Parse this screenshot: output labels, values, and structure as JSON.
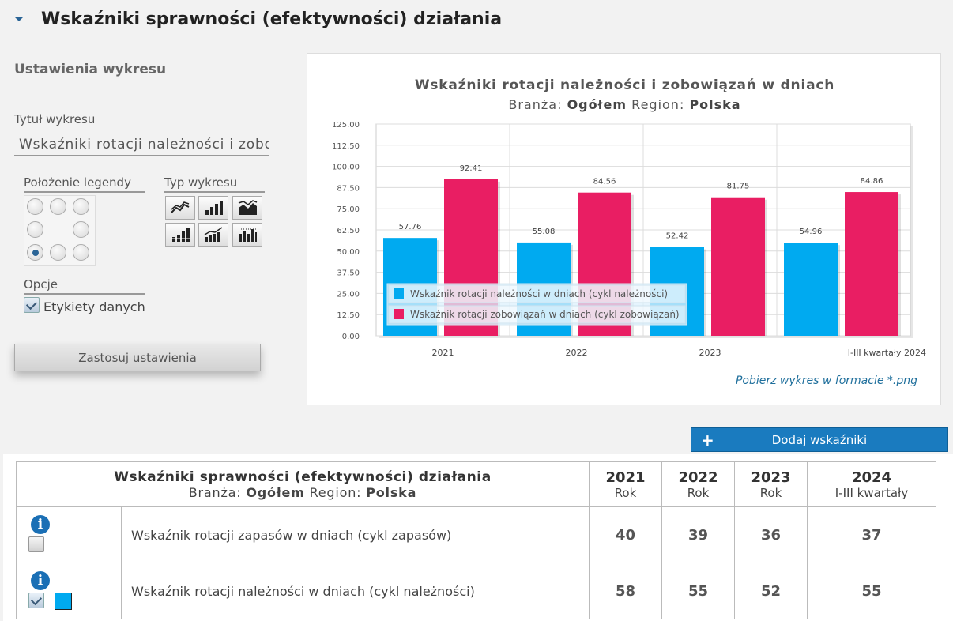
{
  "header": {
    "title": "Wskaźniki sprawności (efektywności) działania"
  },
  "settings": {
    "title": "Ustawienia wykresu",
    "chart_title_label": "Tytuł wykresu",
    "chart_title_value": "Wskaźniki rotacji należności i zobowiązań w dniach",
    "legend_position_label": "Położenie legendy",
    "legend_position_selected": "bottom-left",
    "chart_type_label": "Typ wykresu",
    "chart_types": [
      "line-chart-icon",
      "bar-chart-icon",
      "area-chart-icon",
      "stacked-bar-chart-icon",
      "line-bar-chart-icon",
      "dotted-bar-chart-icon"
    ],
    "options_label": "Opcje",
    "data_labels_option": "Etykiety danych",
    "data_labels_checked": true,
    "apply_button": "Zastosuj ustawienia"
  },
  "chart_panel": {
    "subtitle_branza_label": "Branża:",
    "subtitle_branza_value": "Ogółem",
    "subtitle_region_label": "Region:",
    "subtitle_region_value": "Polska",
    "download_link": "Pobierz wykres w formacie *.png"
  },
  "chart_data": {
    "type": "bar",
    "title": "Wskaźniki rotacji należności i zobowiązań w dniach",
    "categories": [
      "2021",
      "2022",
      "2023",
      "I-III kwartały 2024"
    ],
    "series": [
      {
        "name": "Wskaźnik rotacji należności w dniach (cykl należności)",
        "color": "#00aaf0",
        "values": [
          57.76,
          55.08,
          52.42,
          54.96
        ]
      },
      {
        "name": "Wskaźnik rotacji zobowiązań w dniach (cykl zobowiązań)",
        "color": "#e91e63",
        "values": [
          92.41,
          84.56,
          81.75,
          84.86
        ]
      }
    ],
    "yticks": [
      "0.00",
      "12.50",
      "25.00",
      "37.50",
      "50.00",
      "62.50",
      "75.00",
      "87.50",
      "100.00",
      "112.50",
      "125.00"
    ],
    "ylim": [
      0,
      125
    ],
    "grid": true,
    "legend_position": "bottom-left"
  },
  "add_button": {
    "label": "Dodaj wskaźniki"
  },
  "table": {
    "title": "Wskaźniki sprawności (efektywności) działania",
    "subtitle_branza_label": "Branża:",
    "subtitle_branza_value": "Ogółem",
    "subtitle_region_label": "Region:",
    "subtitle_region_value": "Polska",
    "columns": [
      {
        "year": "2021",
        "period": "Rok"
      },
      {
        "year": "2022",
        "period": "Rok"
      },
      {
        "year": "2023",
        "period": "Rok"
      },
      {
        "year": "2024",
        "period": "I-III kwartały"
      }
    ],
    "rows": [
      {
        "name": "Wskaźnik rotacji zapasów w dniach (cykl zapasów)",
        "checked": false,
        "values": [
          "40",
          "39",
          "36",
          "37"
        ]
      },
      {
        "name": "Wskaźnik rotacji należności w dniach (cykl należności)",
        "checked": true,
        "swatch": "#00aaf0",
        "values": [
          "58",
          "55",
          "52",
          "55"
        ]
      }
    ]
  }
}
